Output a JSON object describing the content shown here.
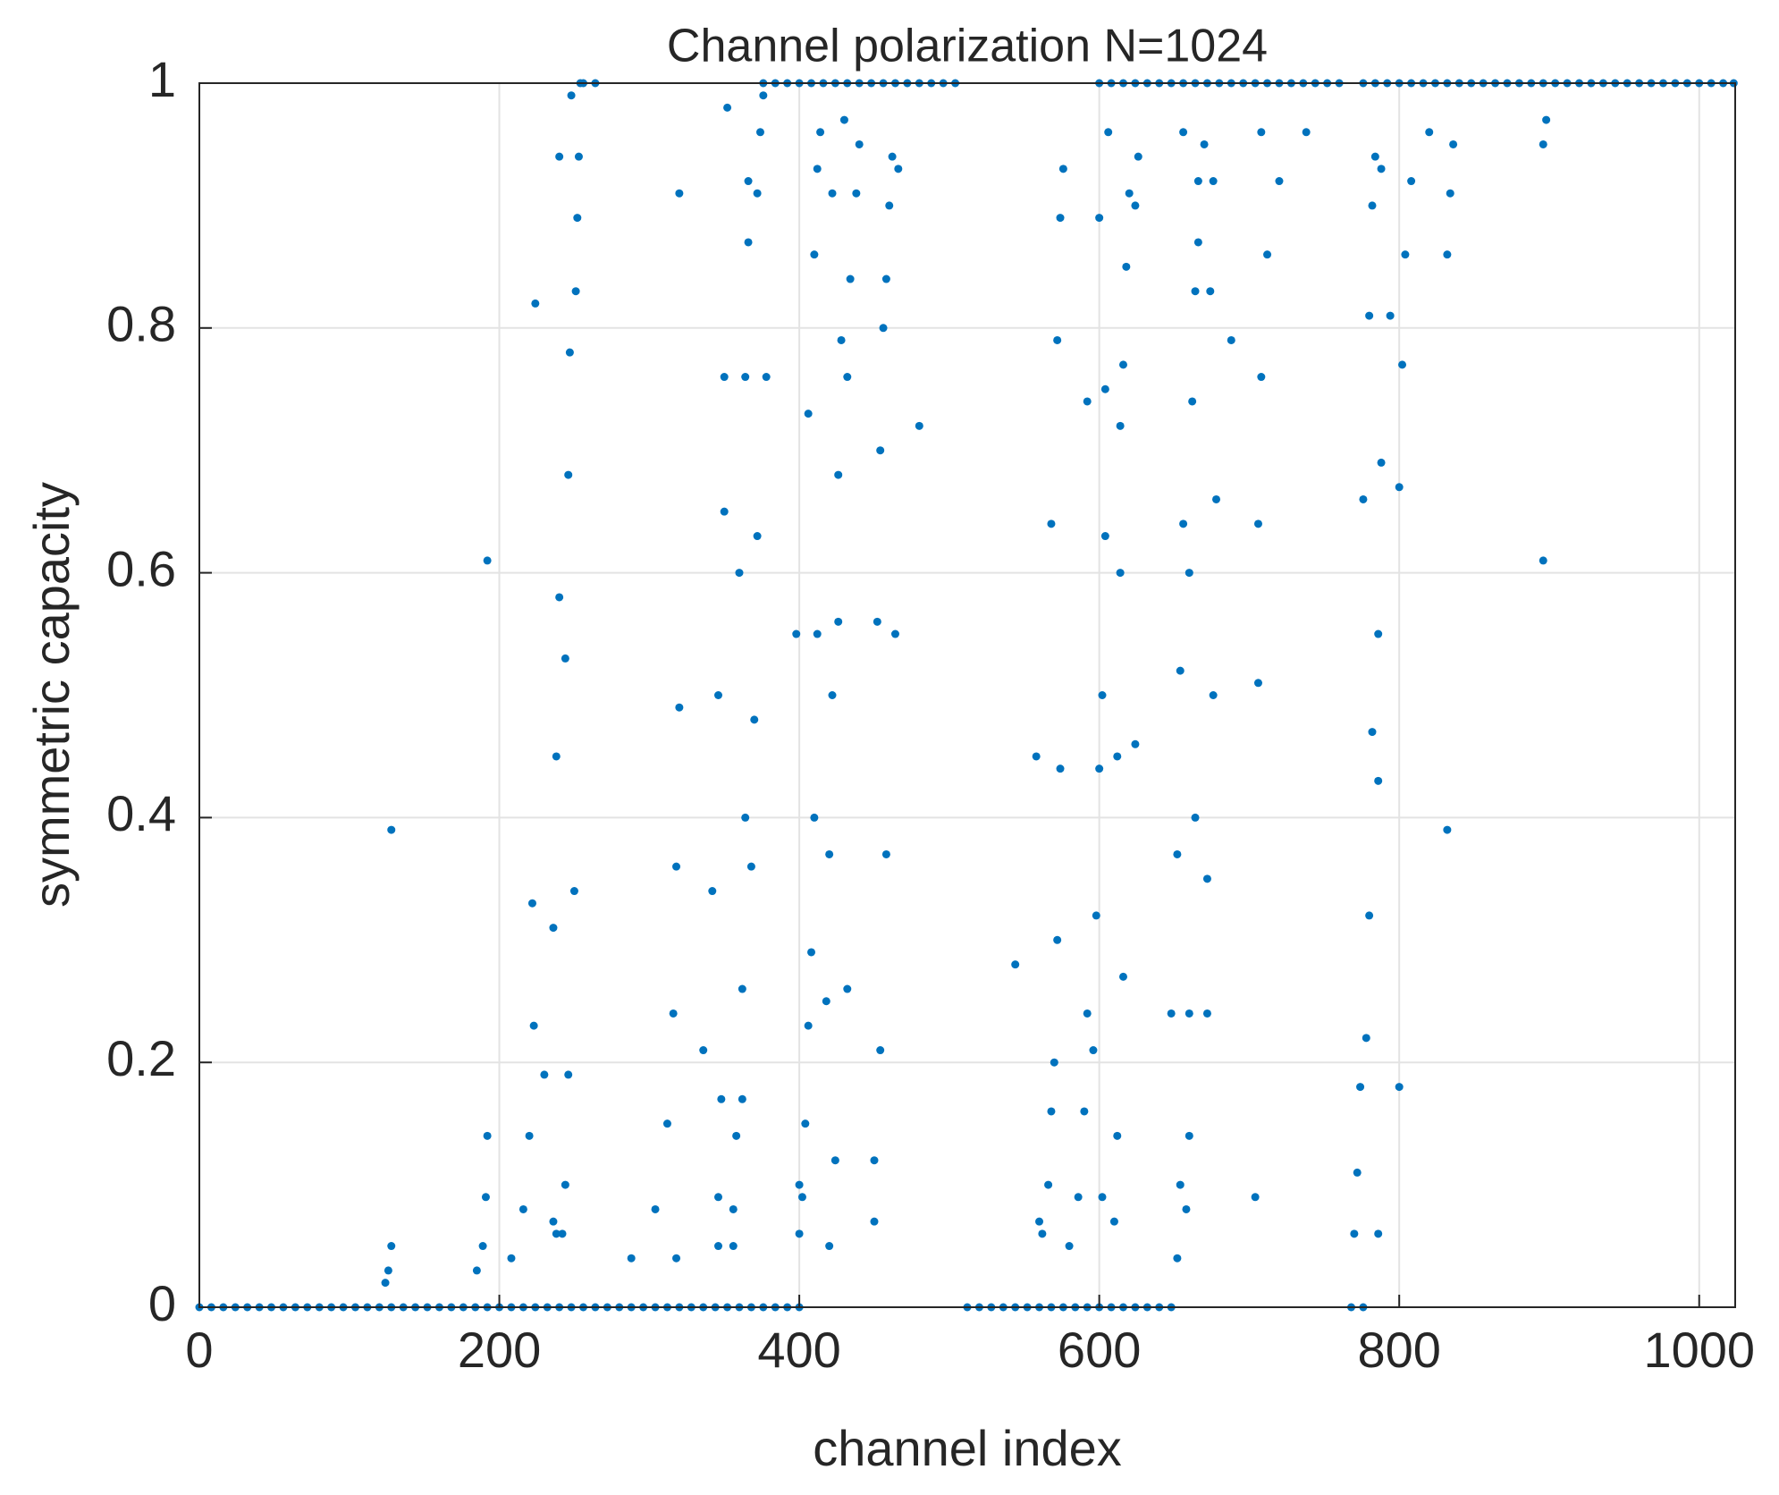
{
  "chart_data": {
    "type": "scatter",
    "title": "Channel polarization N=1024",
    "xlabel": "channel index",
    "ylabel": "symmetric capacity",
    "xlim": [
      0,
      1024
    ],
    "xticks": [
      0,
      200,
      400,
      600,
      800,
      1000
    ],
    "ylim": [
      0,
      1
    ],
    "yticks": [
      0,
      0.2,
      0.4,
      0.6,
      0.8,
      1
    ],
    "grid": true,
    "color": "#0072bd",
    "series": [
      {
        "color": "#0072bd",
        "x": [
          128,
          128,
          126,
          124,
          192,
          192,
          191,
          189,
          185,
          208,
          216,
          220,
          224,
          223,
          222,
          230,
          236,
          238,
          240,
          240,
          236,
          238,
          242,
          244,
          244,
          246,
          246,
          247,
          248,
          250,
          251,
          252,
          253,
          254
        ],
        "values": [
          0.39,
          0.05,
          0.03,
          0.02,
          0.61,
          0.14,
          0.09,
          0.05,
          0.03,
          0.04,
          0.08,
          0.14,
          0.82,
          0.23,
          0.33,
          0.19,
          0.31,
          0.45,
          0.58,
          0.94,
          0.07,
          0.06,
          0.06,
          0.53,
          0.1,
          0.68,
          0.19,
          0.78,
          0.99,
          0.34,
          0.83,
          0.89,
          0.94,
          1.0
        ]
      },
      {
        "color": "#0072bd",
        "x": [
          304,
          288,
          312,
          316,
          318,
          318,
          320,
          320,
          336,
          342,
          346,
          346,
          348,
          350,
          350,
          352,
          356,
          358,
          360,
          362,
          362,
          364,
          364,
          366,
          366,
          368,
          370,
          372,
          372,
          374,
          376,
          378,
          346,
          356
        ],
        "values": [
          0.08,
          0.04,
          0.15,
          0.24,
          0.36,
          0.04,
          0.49,
          0.91,
          0.21,
          0.34,
          0.5,
          0.09,
          0.17,
          0.65,
          0.76,
          0.98,
          0.08,
          0.14,
          0.6,
          0.17,
          0.26,
          0.76,
          0.4,
          0.87,
          0.92,
          0.36,
          0.48,
          0.63,
          0.91,
          0.96,
          0.99,
          0.76,
          0.05,
          0.05
        ]
      },
      {
        "color": "#0072bd",
        "x": [
          398,
          400,
          400,
          402,
          404,
          406,
          406,
          408,
          410,
          410,
          412,
          412,
          414,
          418,
          420,
          420,
          422,
          422,
          424,
          426,
          426,
          428,
          430,
          432,
          432,
          434,
          438,
          440,
          450,
          450,
          452,
          454,
          454,
          456,
          458,
          458,
          460,
          462,
          464,
          466,
          480
        ],
        "values": [
          0.55,
          0.06,
          0.1,
          0.09,
          0.15,
          0.23,
          0.73,
          0.29,
          0.4,
          0.86,
          0.55,
          0.93,
          0.96,
          0.25,
          0.05,
          0.37,
          0.5,
          0.91,
          0.12,
          0.56,
          0.68,
          0.79,
          0.97,
          0.26,
          0.76,
          0.84,
          0.91,
          0.95,
          0.12,
          0.07,
          0.56,
          0.21,
          0.7,
          0.8,
          0.37,
          0.84,
          0.9,
          0.94,
          0.55,
          0.93,
          0.72
        ]
      },
      {
        "color": "#0072bd",
        "x": [
          544,
          558,
          560,
          562,
          566,
          568,
          568,
          570,
          572,
          572,
          574,
          574,
          576,
          580,
          586,
          590,
          592,
          592,
          596,
          598,
          600,
          600,
          602,
          602,
          604,
          604,
          606,
          610,
          612,
          612,
          614,
          614,
          616,
          616,
          618,
          620,
          624,
          624,
          626
        ],
        "values": [
          0.28,
          0.45,
          0.07,
          0.06,
          0.1,
          0.16,
          0.64,
          0.2,
          0.3,
          0.79,
          0.44,
          0.89,
          0.93,
          0.05,
          0.09,
          0.16,
          0.24,
          0.74,
          0.21,
          0.32,
          0.44,
          0.89,
          0.09,
          0.5,
          0.63,
          0.75,
          0.96,
          0.07,
          0.14,
          0.45,
          0.6,
          0.72,
          0.27,
          0.77,
          0.85,
          0.91,
          0.46,
          0.9,
          0.94
        ]
      },
      {
        "color": "#0072bd",
        "x": [
          648,
          652,
          652,
          654,
          654,
          656,
          656,
          658,
          660,
          660,
          660,
          662,
          664,
          664,
          666,
          666,
          670,
          672,
          672,
          674,
          676,
          676,
          678,
          688,
          704,
          706,
          706,
          708,
          708,
          712,
          720,
          738
        ],
        "values": [
          0.24,
          0.04,
          0.37,
          0.52,
          0.1,
          0.64,
          0.96,
          0.08,
          0.14,
          0.24,
          0.6,
          0.74,
          0.4,
          0.83,
          0.87,
          0.92,
          0.95,
          0.24,
          0.35,
          0.83,
          0.5,
          0.92,
          0.66,
          0.79,
          0.09,
          0.51,
          0.64,
          0.76,
          0.96,
          0.86,
          0.92,
          0.96
        ]
      },
      {
        "color": "#0072bd",
        "x": [
          770,
          772,
          774,
          776,
          778,
          780,
          780,
          782,
          782,
          784,
          786,
          786,
          786,
          788,
          788,
          794,
          800,
          800,
          802,
          804,
          808,
          820,
          832,
          832,
          834,
          836,
          896,
          896,
          898
        ],
        "values": [
          0.06,
          0.11,
          0.18,
          0.66,
          0.22,
          0.32,
          0.81,
          0.47,
          0.9,
          0.94,
          0.06,
          0.43,
          0.55,
          0.69,
          0.93,
          0.81,
          0.18,
          0.67,
          0.77,
          0.86,
          0.92,
          0.96,
          0.39,
          0.86,
          0.91,
          0.95,
          0.61,
          0.95,
          0.97
        ]
      },
      {
        "color": "#0072bd",
        "x": [
          0,
          8,
          16,
          24,
          32,
          40,
          48,
          56,
          64,
          72,
          80,
          88,
          96,
          104,
          112,
          120,
          128,
          136,
          144,
          152,
          160,
          168,
          176,
          184,
          192,
          200,
          208,
          216,
          224,
          232,
          240,
          248
        ],
        "values": [
          0,
          0,
          0,
          0,
          0,
          0,
          0,
          0,
          0,
          0,
          0,
          0,
          0,
          0,
          0,
          0,
          0,
          0,
          0,
          0,
          0,
          0,
          0,
          0,
          0,
          0,
          0,
          0,
          0,
          0,
          0,
          0
        ]
      },
      {
        "color": "#0072bd",
        "x": [
          256,
          264,
          272,
          280,
          288,
          296,
          304,
          312,
          320,
          328,
          336,
          344,
          352,
          360,
          368,
          376,
          384,
          392,
          400
        ],
        "values": [
          0,
          0,
          0,
          0,
          0,
          0,
          0,
          0,
          0,
          0,
          0,
          0,
          0,
          0,
          0,
          0,
          0,
          0,
          0
        ]
      },
      {
        "color": "#0072bd",
        "x": [
          512,
          520,
          528,
          536,
          544,
          552,
          560,
          568,
          576,
          584,
          592,
          600,
          608,
          616,
          624,
          632,
          640,
          648
        ],
        "values": [
          0,
          0,
          0,
          0,
          0,
          0,
          0,
          0,
          0,
          0,
          0,
          0,
          0,
          0,
          0,
          0,
          0,
          0
        ]
      },
      {
        "color": "#0072bd",
        "x": [
          768,
          776
        ],
        "values": [
          0,
          0
        ]
      },
      {
        "color": "#0072bd",
        "x": [
          256,
          264
        ],
        "values": [
          1,
          1
        ]
      },
      {
        "color": "#0072bd",
        "x": [
          376,
          384,
          392,
          400,
          408,
          416,
          424,
          432,
          440,
          448,
          456,
          464,
          472,
          480,
          488,
          496,
          504
        ],
        "values": [
          1,
          1,
          1,
          1,
          1,
          1,
          1,
          1,
          1,
          1,
          1,
          1,
          1,
          1,
          1,
          1,
          1
        ]
      },
      {
        "color": "#0072bd",
        "x": [
          600,
          608,
          616,
          624,
          632,
          640,
          648,
          656,
          664,
          672,
          680,
          688,
          696,
          704,
          712,
          720,
          728,
          736,
          744,
          752,
          760
        ],
        "values": [
          1,
          1,
          1,
          1,
          1,
          1,
          1,
          1,
          1,
          1,
          1,
          1,
          1,
          1,
          1,
          1,
          1,
          1,
          1,
          1,
          1
        ]
      },
      {
        "color": "#0072bd",
        "x": [
          776,
          784,
          792,
          800,
          808,
          816,
          824,
          832,
          840,
          848,
          856,
          864,
          872,
          880,
          888,
          896,
          904,
          912,
          920,
          928,
          936,
          944,
          952,
          960,
          968,
          976,
          984,
          992,
          1000,
          1008,
          1016,
          1023
        ],
        "values": [
          1,
          1,
          1,
          1,
          1,
          1,
          1,
          1,
          1,
          1,
          1,
          1,
          1,
          1,
          1,
          1,
          1,
          1,
          1,
          1,
          1,
          1,
          1,
          1,
          1,
          1,
          1,
          1,
          1,
          1,
          1,
          1
        ]
      }
    ]
  }
}
